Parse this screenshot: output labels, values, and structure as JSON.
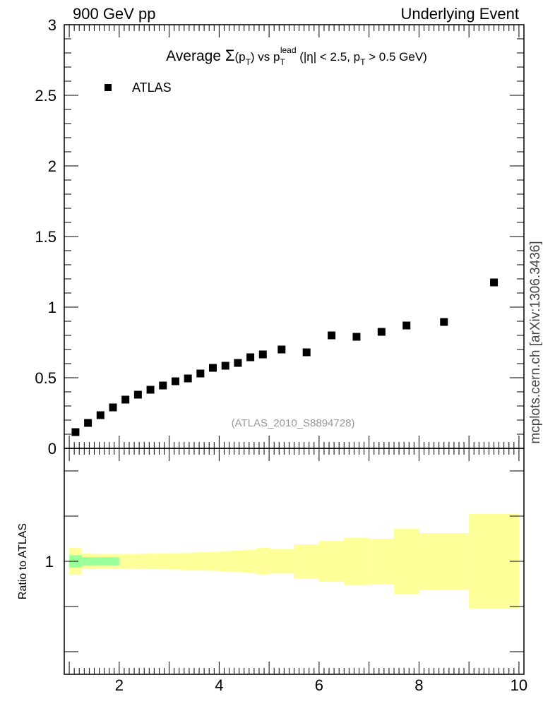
{
  "header": {
    "left": "900 GeV pp",
    "right": "Underlying Event"
  },
  "side_label": "mcplots.cern.ch [arXiv:1306.3436]",
  "watermark": "(ATLAS_2010_S8894728)",
  "ratio_ylabel": "Ratio to ATLAS",
  "title": {
    "p1": "Average ",
    "sigma": "Σ",
    "p2": "(p",
    "sub1": "T",
    "p3": ") vs p",
    "sup_lead": "lead",
    "sub2": "T",
    "p4": " (|η| < 2.5, p",
    "sub3": "T",
    "p5": " > 0.5 GeV)"
  },
  "colors": {
    "marker": "#000000",
    "band_yellow": "#ffff99",
    "band_green": "#99ff99"
  },
  "chart_data": [
    {
      "type": "scatter",
      "panel": "main",
      "xlim": [
        0.9,
        10.1
      ],
      "ylim": [
        0,
        3
      ],
      "yticks_labels": [
        "0",
        "0.5",
        "1",
        "1.5",
        "2",
        "2.5",
        "3"
      ],
      "legend": [
        "ATLAS"
      ],
      "legend_position": "top-left",
      "series": [
        {
          "name": "ATLAS",
          "x": [
            1.125,
            1.375,
            1.625,
            1.875,
            2.125,
            2.375,
            2.625,
            2.875,
            3.125,
            3.375,
            3.625,
            3.875,
            4.125,
            4.375,
            4.625,
            4.875,
            5.25,
            5.75,
            6.25,
            6.75,
            7.25,
            7.75,
            8.5,
            9.5
          ],
          "y": [
            0.115,
            0.18,
            0.235,
            0.29,
            0.345,
            0.38,
            0.415,
            0.445,
            0.475,
            0.495,
            0.53,
            0.57,
            0.585,
            0.605,
            0.645,
            0.665,
            0.7,
            0.68,
            0.8,
            0.79,
            0.825,
            0.87,
            0.895,
            1.175
          ]
        }
      ]
    },
    {
      "type": "area",
      "panel": "ratio",
      "xlim": [
        0.9,
        10.1
      ],
      "ylim": [
        0.5,
        1.5
      ],
      "yticks_labels": [
        "1"
      ],
      "xticks_labels": [
        "2",
        "4",
        "6",
        "8",
        "10"
      ],
      "ylabel": "Ratio to ATLAS",
      "bands": [
        {
          "color": "yellow",
          "bins": [
            [
              1.0,
              1.25,
              0.94,
              1.06
            ],
            [
              1.25,
              1.5,
              0.966,
              1.034
            ],
            [
              1.5,
              1.75,
              0.967,
              1.033
            ],
            [
              1.75,
              2.0,
              0.967,
              1.033
            ],
            [
              2.0,
              2.25,
              0.967,
              1.033
            ],
            [
              2.25,
              2.5,
              0.967,
              1.033
            ],
            [
              2.5,
              2.75,
              0.966,
              1.034
            ],
            [
              2.75,
              3.0,
              0.965,
              1.035
            ],
            [
              3.0,
              3.25,
              0.964,
              1.036
            ],
            [
              3.25,
              3.5,
              0.962,
              1.038
            ],
            [
              3.5,
              3.75,
              0.96,
              1.04
            ],
            [
              3.75,
              4.0,
              0.958,
              1.042
            ],
            [
              4.0,
              4.25,
              0.955,
              1.045
            ],
            [
              4.25,
              4.5,
              0.952,
              1.048
            ],
            [
              4.5,
              4.75,
              0.948,
              1.052
            ],
            [
              4.75,
              5.0,
              0.94,
              1.06
            ],
            [
              5.0,
              5.5,
              0.946,
              1.054
            ],
            [
              5.5,
              6.0,
              0.925,
              1.075
            ],
            [
              6.0,
              6.5,
              0.91,
              1.09
            ],
            [
              6.5,
              7.0,
              0.895,
              1.105
            ],
            [
              7.0,
              7.5,
              0.9,
              1.1
            ],
            [
              7.5,
              8.0,
              0.855,
              1.145
            ],
            [
              8.0,
              9.0,
              0.875,
              1.125
            ],
            [
              9.0,
              10.0,
              0.79,
              1.21
            ]
          ]
        },
        {
          "color": "green",
          "bins": [
            [
              1.0,
              1.25,
              0.973,
              1.027
            ],
            [
              1.25,
              1.5,
              0.982,
              1.018
            ],
            [
              1.5,
              1.75,
              0.982,
              1.018
            ],
            [
              1.75,
              2.0,
              0.982,
              1.018
            ]
          ]
        }
      ]
    }
  ]
}
